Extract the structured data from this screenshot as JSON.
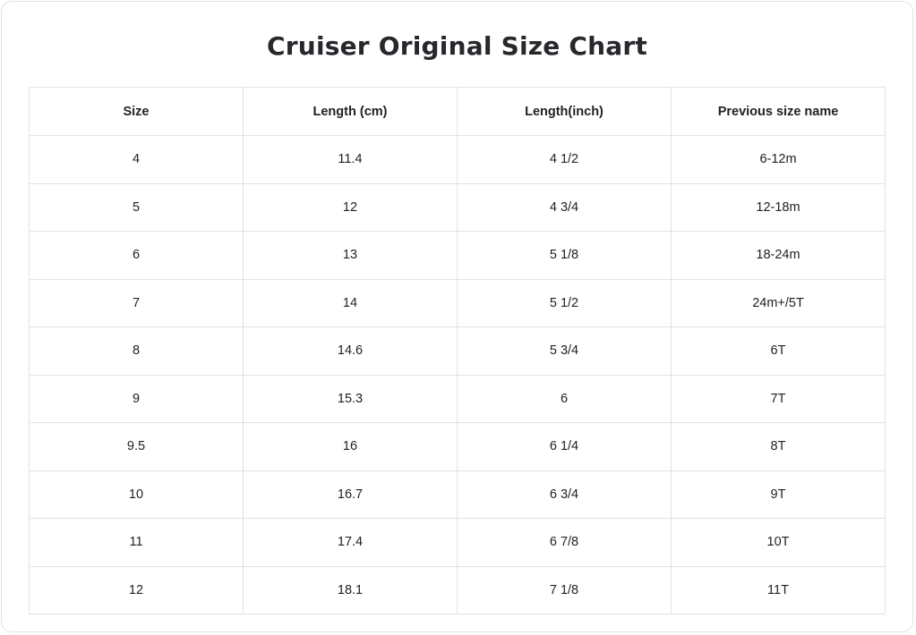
{
  "page": {
    "title": "Cruiser Original Size Chart"
  },
  "colors": {
    "outer_border": "#e3e3e3",
    "table_line": "#e2e2e2",
    "text": "#222222",
    "title_text": "#26282c",
    "background": "#ffffff"
  },
  "chart_data": {
    "type": "table",
    "title": "Cruiser Original Size Chart",
    "columns": [
      "Size",
      "Length (cm)",
      "Length(inch)",
      "Previous size name"
    ],
    "rows": [
      [
        "4",
        "11.4",
        "4 1/2",
        "6-12m"
      ],
      [
        "5",
        "12",
        "4 3/4",
        "12-18m"
      ],
      [
        "6",
        "13",
        "5 1/8",
        "18-24m"
      ],
      [
        "7",
        "14",
        "5 1/2",
        "24m+/5T"
      ],
      [
        "8",
        "14.6",
        "5 3/4",
        "6T"
      ],
      [
        "9",
        "15.3",
        "6",
        "7T"
      ],
      [
        "9.5",
        "16",
        "6 1/4",
        "8T"
      ],
      [
        "10",
        "16.7",
        "6 3/4",
        "9T"
      ],
      [
        "11",
        "17.4",
        "6 7/8",
        "10T"
      ],
      [
        "12",
        "18.1",
        "7 1/8",
        "11T"
      ]
    ],
    "layout": {
      "columns_equal_width": true,
      "text_align": "center",
      "grid": "full-borders"
    }
  }
}
